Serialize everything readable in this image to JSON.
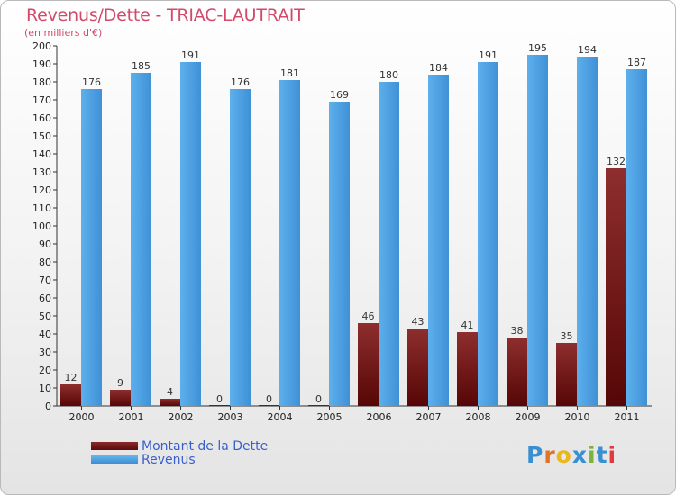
{
  "title": "Revenus/Dette - TRIAC-LAUTRAIT",
  "subtitle": "(en milliers d'€)",
  "logo": {
    "text": "Proxiti",
    "letter_colors": [
      "#3a8fd0",
      "#e0742a",
      "#e8b81c",
      "#3a8fd0",
      "#7ab33a",
      "#3a8fd0",
      "#e03a3a"
    ]
  },
  "chart_data": {
    "type": "bar",
    "categories": [
      "2000",
      "2001",
      "2002",
      "2003",
      "2004",
      "2005",
      "2006",
      "2007",
      "2008",
      "2009",
      "2010",
      "2011"
    ],
    "series": [
      {
        "name": "Montant de la Dette",
        "color": "#7a1a1a",
        "values": [
          12,
          9,
          4,
          0,
          0,
          0,
          46,
          43,
          41,
          38,
          35,
          132
        ]
      },
      {
        "name": "Revenus",
        "color": "#4ea3e2",
        "values": [
          176,
          185,
          191,
          176,
          181,
          169,
          180,
          184,
          191,
          195,
          194,
          187
        ]
      }
    ],
    "ylim": [
      0,
      200
    ],
    "ytick_step": 10,
    "grid": false,
    "legend": "bottom-left"
  }
}
